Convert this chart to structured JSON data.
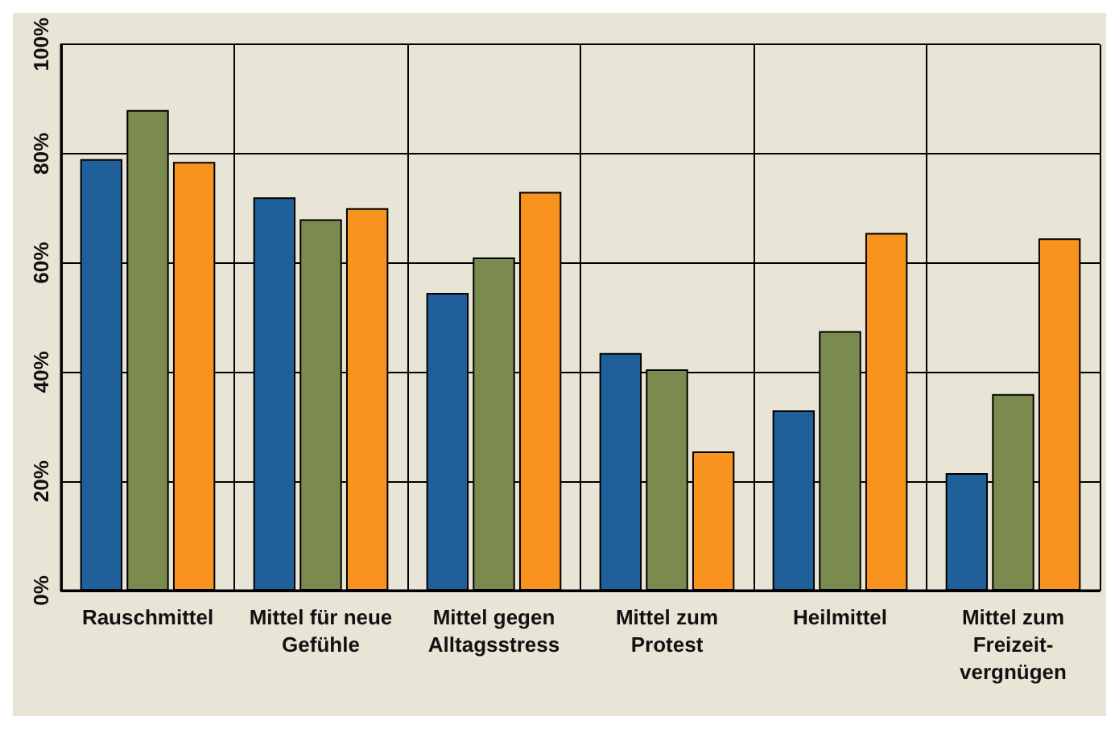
{
  "chart_data": {
    "type": "bar",
    "categories": [
      "Rauschmittel",
      "Mittel für neue\nGefühle",
      "Mittel gegen\nAlltagsstress",
      "Mittel zum\nProtest",
      "Heilmittel",
      "Mittel zum\nFreizeit-\nvergnügen"
    ],
    "series": [
      {
        "color": "#1f5f9a",
        "values": [
          79,
          72,
          54.5,
          43.5,
          33,
          21.5
        ]
      },
      {
        "color": "#7b8a4e",
        "values": [
          88,
          68,
          61,
          40.5,
          47.5,
          36
        ]
      },
      {
        "color": "#f7931e",
        "values": [
          78.5,
          70,
          73,
          25.5,
          65.5,
          64.5
        ]
      }
    ],
    "ylim": [
      0,
      100
    ],
    "yticks": [
      {
        "value": 0,
        "label": "0%"
      },
      {
        "value": 20,
        "label": "20%"
      },
      {
        "value": 40,
        "label": "40%"
      },
      {
        "value": 60,
        "label": "60%"
      },
      {
        "value": 80,
        "label": "80%"
      },
      {
        "value": 100,
        "label": "100%"
      }
    ],
    "grid": true
  }
}
